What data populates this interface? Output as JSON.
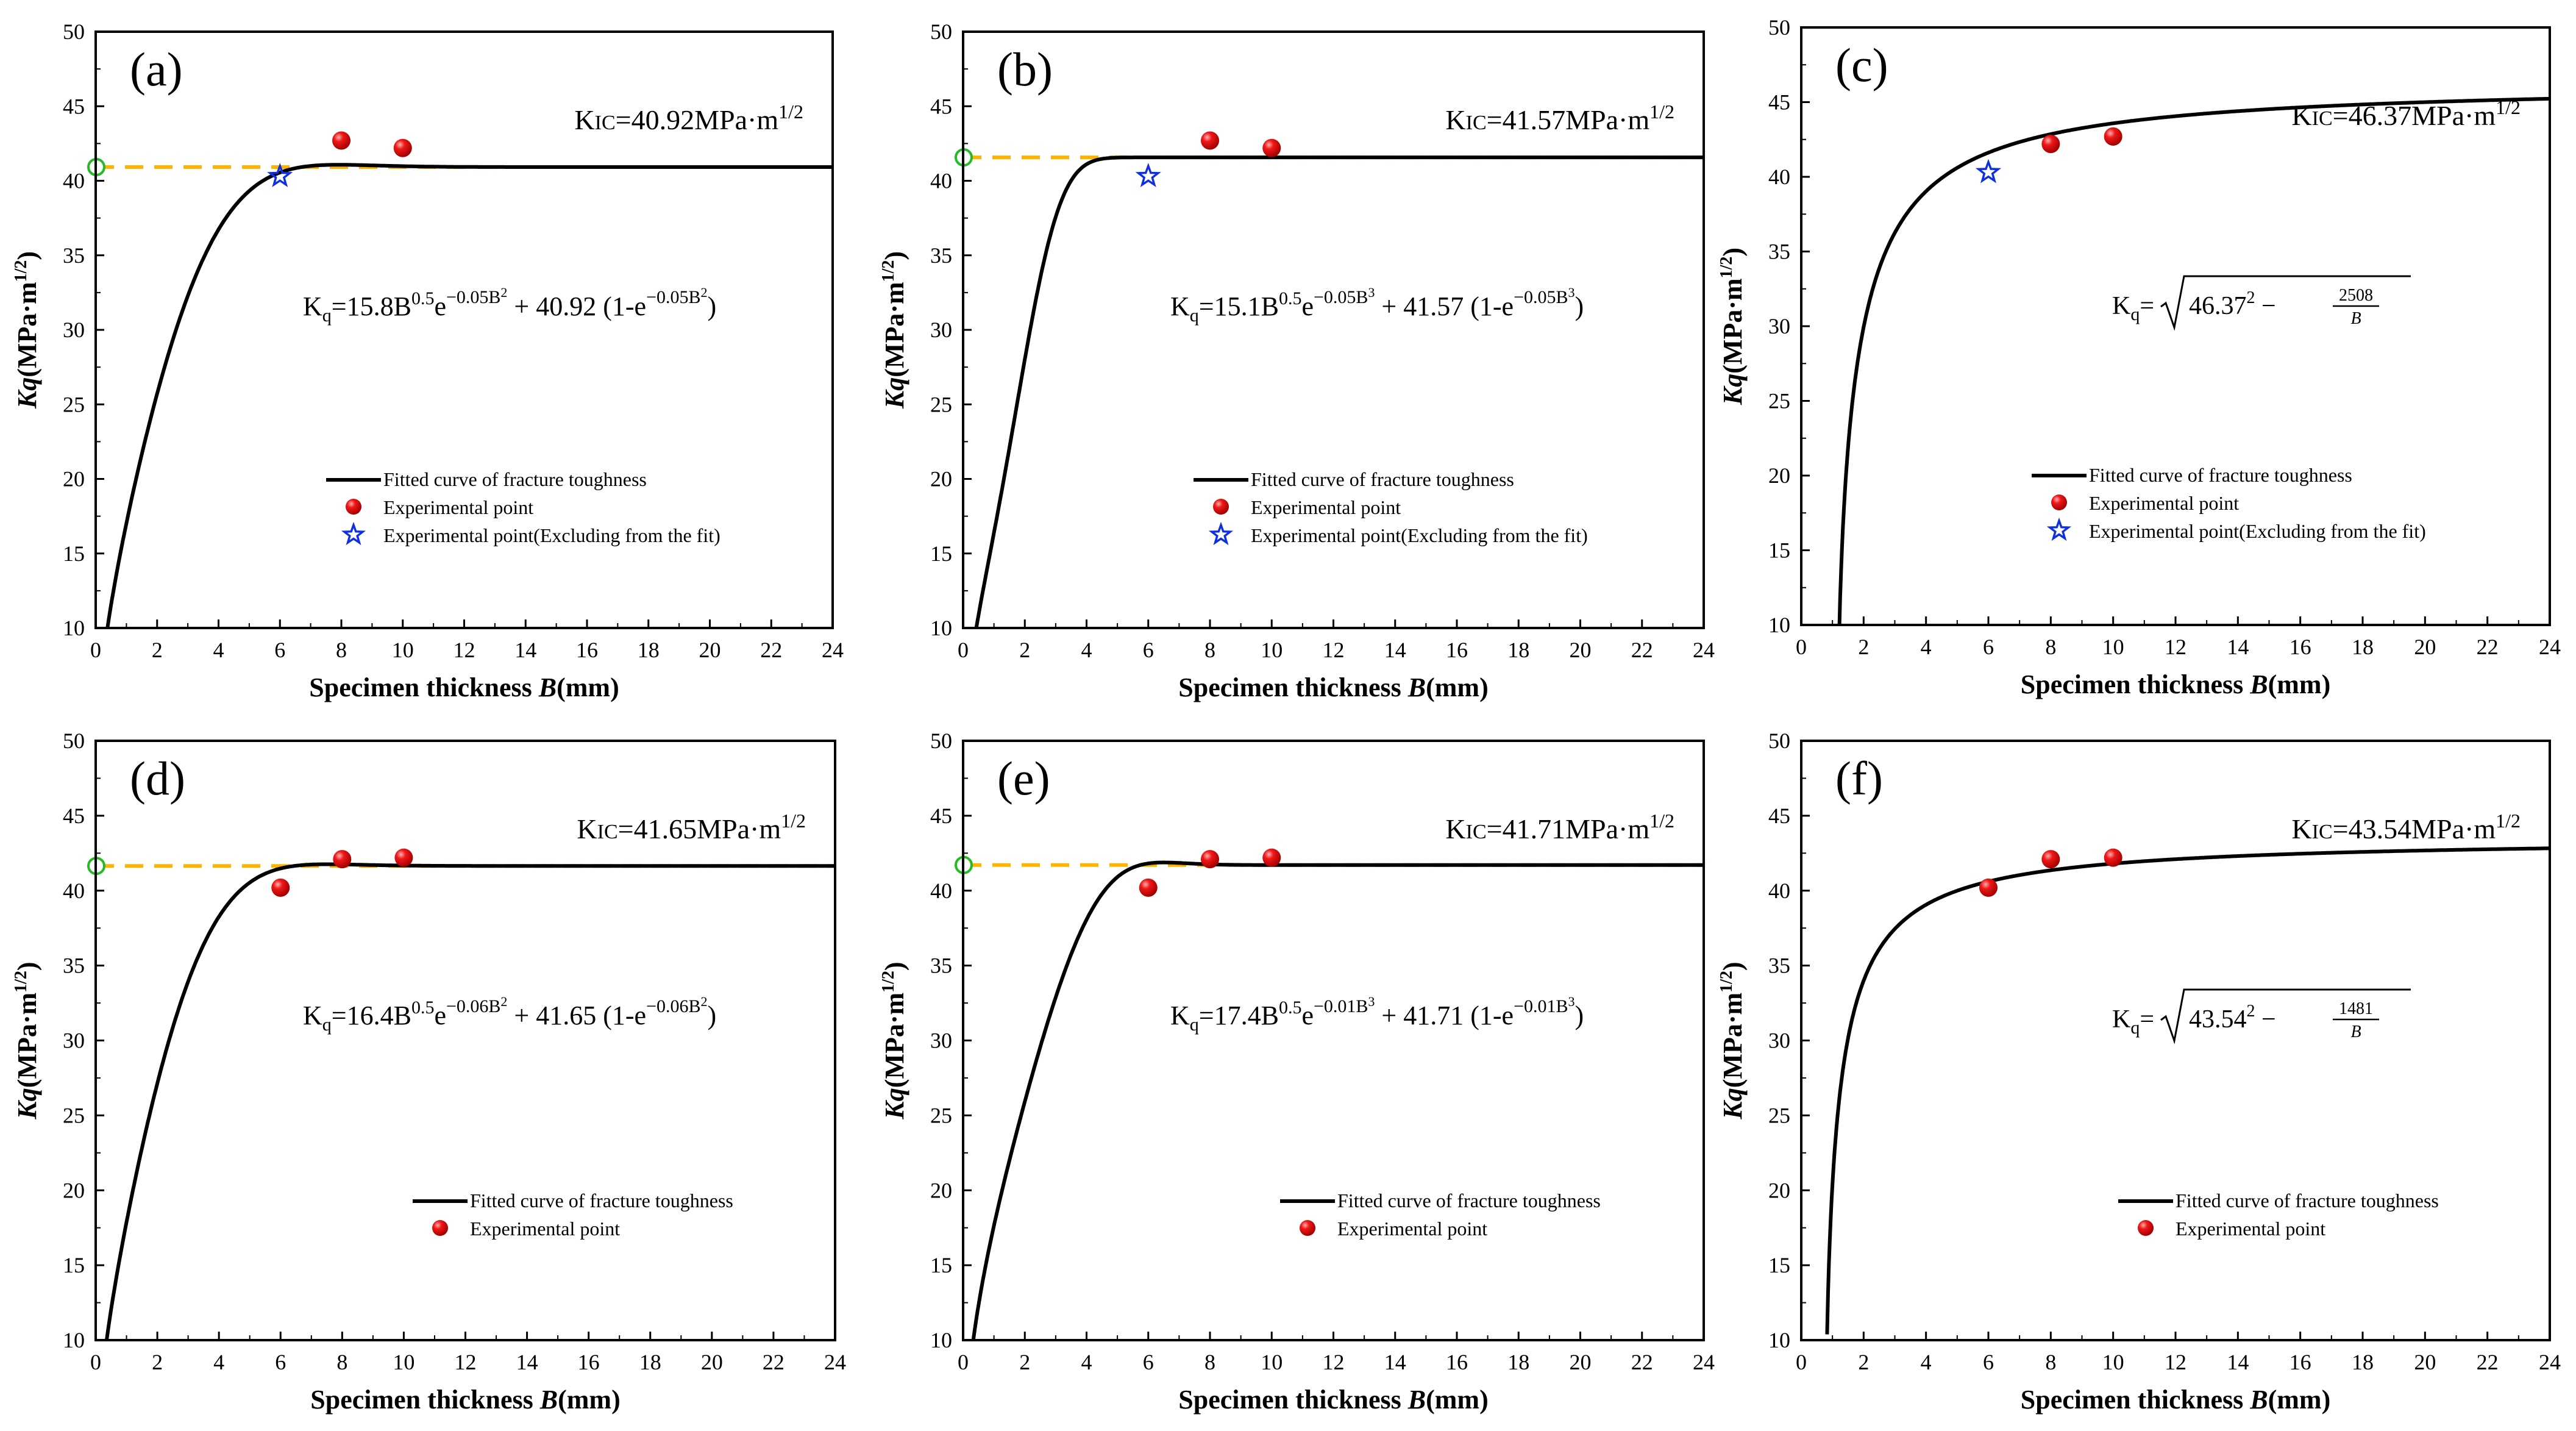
{
  "figure": {
    "xlabel_prefix": "Specimen thickness ",
    "xlabel_var": "B",
    "xlabel_unit": "(mm)",
    "ylabel_var": "Kq",
    "ylabel_unit": "(MPa·m",
    "ylabel_exp": "1/2",
    "ylabel_close": ")",
    "legend_curve": "Fitted curve of fracture toughness",
    "legend_point": "Experimental point",
    "legend_excluded": "Experimental point(Excluding from the fit)",
    "colors": {
      "curve": "#000000",
      "dash": "#FFB300",
      "point": "#E8000B",
      "star": "#1030E0",
      "circle": "#22BB22"
    }
  },
  "chart_data": [
    {
      "panel": "(a)",
      "type": "line+scatter",
      "xlim": [
        0,
        24
      ],
      "ylim": [
        10,
        50
      ],
      "xticks": [
        0,
        2,
        4,
        6,
        8,
        10,
        12,
        14,
        16,
        18,
        20,
        22,
        24
      ],
      "yticks": [
        10,
        15,
        20,
        25,
        30,
        35,
        40,
        45,
        50
      ],
      "kic_value": 40.92,
      "kic_label": "K",
      "kic_sub": "IC",
      "kic_eq": "=40.92MPa·m",
      "kic_exp": "1/2",
      "formula": {
        "kind": "exp",
        "lhs": "K",
        "lhs_sub": "q",
        "a": "15.8",
        "p": "0.05",
        "n": "2",
        "k": "40.92"
      },
      "fit": {
        "kind": "exp",
        "a": 15.8,
        "p": 0.05,
        "n": 2,
        "k": 40.92
      },
      "hline": true,
      "points": [
        [
          8,
          42.7
        ],
        [
          10,
          42.2
        ]
      ],
      "excluded": [
        [
          6,
          40.3
        ]
      ],
      "legend": [
        "curve",
        "point",
        "excluded"
      ]
    },
    {
      "panel": "(b)",
      "type": "line+scatter",
      "xlim": [
        0,
        24
      ],
      "ylim": [
        10,
        50
      ],
      "xticks": [
        0,
        2,
        4,
        6,
        8,
        10,
        12,
        14,
        16,
        18,
        20,
        22,
        24
      ],
      "yticks": [
        10,
        15,
        20,
        25,
        30,
        35,
        40,
        45,
        50
      ],
      "kic_value": 41.57,
      "kic_label": "K",
      "kic_sub": "IC",
      "kic_eq": "=41.57MPa·m",
      "kic_exp": "1/2",
      "formula": {
        "kind": "exp",
        "lhs": "K",
        "lhs_sub": "q",
        "a": "15.1",
        "p": "0.05",
        "n": "3",
        "k": "41.57"
      },
      "fit": {
        "kind": "exp",
        "a": 15.1,
        "p": 0.05,
        "n": 3,
        "k": 41.57
      },
      "hline": true,
      "points": [
        [
          8,
          42.7
        ],
        [
          10,
          42.2
        ]
      ],
      "excluded": [
        [
          6,
          40.3
        ]
      ],
      "legend": [
        "curve",
        "point",
        "excluded"
      ]
    },
    {
      "panel": "(c)",
      "type": "line+scatter",
      "xlim": [
        0,
        24
      ],
      "ylim": [
        10,
        50
      ],
      "xticks": [
        0,
        2,
        4,
        6,
        8,
        10,
        12,
        14,
        16,
        18,
        20,
        22,
        24
      ],
      "yticks": [
        10,
        15,
        20,
        25,
        30,
        35,
        40,
        45,
        50
      ],
      "kic_value": 46.37,
      "kic_label": "K",
      "kic_sub": "IC",
      "kic_eq": "=46.37MPa·m",
      "kic_exp": "1/2",
      "formula": {
        "kind": "sqrt",
        "lhs": "K",
        "lhs_sub": "q",
        "k": "46.37",
        "num": "2508",
        "den": "B"
      },
      "fit": {
        "kind": "sqrt",
        "k": 46.37,
        "c": 2508
      },
      "hline": false,
      "points": [
        [
          8,
          42.2
        ],
        [
          10,
          42.7
        ]
      ],
      "excluded": [
        [
          6,
          40.3
        ]
      ],
      "legend": [
        "curve",
        "point",
        "excluded"
      ]
    },
    {
      "panel": "(d)",
      "type": "line+scatter",
      "xlim": [
        0,
        24
      ],
      "ylim": [
        10,
        50
      ],
      "xticks": [
        0,
        2,
        4,
        6,
        8,
        10,
        12,
        14,
        16,
        18,
        20,
        22,
        24
      ],
      "yticks": [
        10,
        15,
        20,
        25,
        30,
        35,
        40,
        45,
        50
      ],
      "kic_value": 41.65,
      "kic_label": "K",
      "kic_sub": "IC",
      "kic_eq": "=41.65MPa·m",
      "kic_exp": "1/2",
      "formula": {
        "kind": "exp",
        "lhs": "K",
        "lhs_sub": "q",
        "a": "16.4",
        "p": "0.06",
        "n": "2",
        "k": "41.65"
      },
      "fit": {
        "kind": "exp",
        "a": 16.4,
        "p": 0.06,
        "n": 2,
        "k": 41.65
      },
      "hline": true,
      "points": [
        [
          6,
          40.2
        ],
        [
          8,
          42.1
        ],
        [
          10,
          42.2
        ]
      ],
      "excluded": [],
      "legend": [
        "curve",
        "point"
      ]
    },
    {
      "panel": "(e)",
      "type": "line+scatter",
      "xlim": [
        0,
        24
      ],
      "ylim": [
        10,
        50
      ],
      "xticks": [
        0,
        2,
        4,
        6,
        8,
        10,
        12,
        14,
        16,
        18,
        20,
        22,
        24
      ],
      "yticks": [
        10,
        15,
        20,
        25,
        30,
        35,
        40,
        45,
        50
      ],
      "kic_value": 41.71,
      "kic_label": "K",
      "kic_sub": "IC",
      "kic_eq": "=41.71MPa·m",
      "kic_exp": "1/2",
      "formula": {
        "kind": "exp",
        "lhs": "K",
        "lhs_sub": "q",
        "a": "17.4",
        "p": "0.01",
        "n": "3",
        "k": "41.71"
      },
      "fit": {
        "kind": "exp",
        "a": 17.4,
        "p": 0.01,
        "n": 3,
        "k": 41.71
      },
      "hline": true,
      "points": [
        [
          6,
          40.2
        ],
        [
          8,
          42.1
        ],
        [
          10,
          42.2
        ]
      ],
      "excluded": [],
      "legend": [
        "curve",
        "point"
      ]
    },
    {
      "panel": "(f)",
      "type": "line+scatter",
      "xlim": [
        0,
        24
      ],
      "ylim": [
        10,
        50
      ],
      "xticks": [
        0,
        2,
        4,
        6,
        8,
        10,
        12,
        14,
        16,
        18,
        20,
        22,
        24
      ],
      "yticks": [
        10,
        15,
        20,
        25,
        30,
        35,
        40,
        45,
        50
      ],
      "kic_value": 43.54,
      "kic_label": "K",
      "kic_sub": "IC",
      "kic_eq": "=43.54MPa·m",
      "kic_exp": "1/2",
      "formula": {
        "kind": "sqrt",
        "lhs": "K",
        "lhs_sub": "q",
        "k": "43.54",
        "num": "1481",
        "den": "B"
      },
      "fit": {
        "kind": "sqrt",
        "k": 43.54,
        "c": 1481
      },
      "hline": false,
      "points": [
        [
          6,
          40.2
        ],
        [
          8,
          42.1
        ],
        [
          10,
          42.2
        ]
      ],
      "excluded": [],
      "legend": [
        "curve",
        "point"
      ]
    }
  ]
}
